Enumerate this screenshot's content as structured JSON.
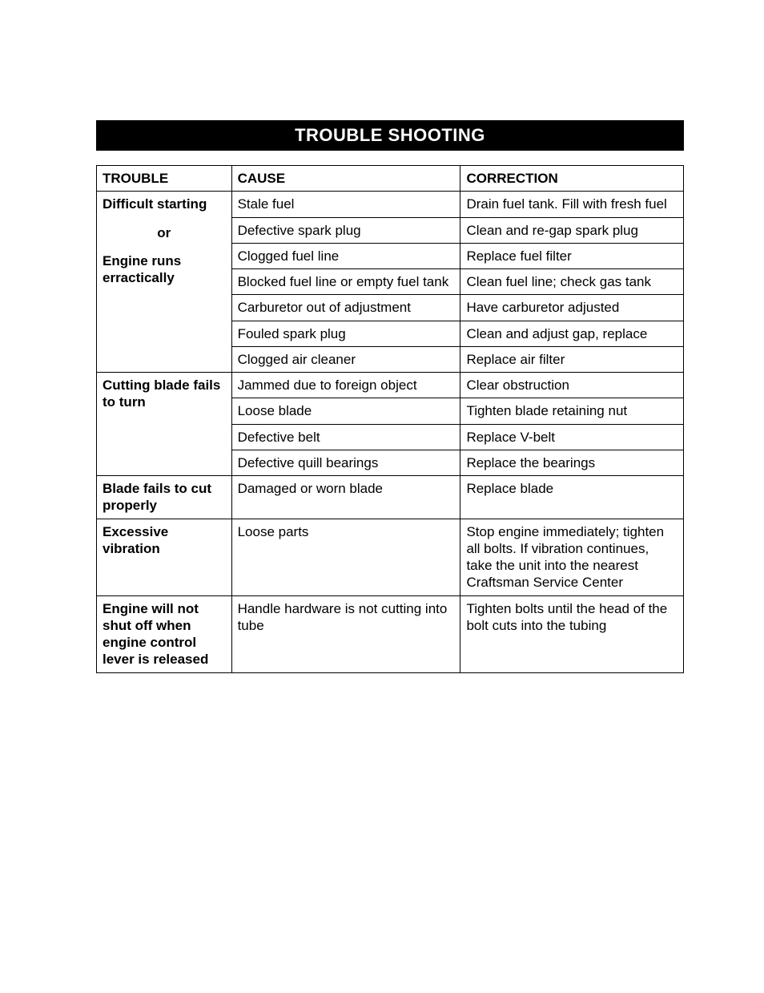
{
  "title": "TROUBLE SHOOTING",
  "headers": {
    "trouble": "TROUBLE",
    "cause": "CAUSE",
    "correction": "CORRECTION"
  },
  "sections": [
    {
      "trouble_lines": [
        "Difficult starting",
        "or",
        "Engine runs erractically"
      ],
      "rows": [
        {
          "cause": "Stale fuel",
          "correction": "Drain fuel tank. Fill with fresh fuel"
        },
        {
          "cause": "Defective spark plug",
          "correction": "Clean and re-gap spark plug"
        },
        {
          "cause": "Clogged fuel line",
          "correction": "Replace fuel filter"
        },
        {
          "cause": "Blocked fuel line or empty fuel tank",
          "correction": "Clean fuel line; check gas tank"
        },
        {
          "cause": "Carburetor out of adjustment",
          "correction": "Have carburetor adjusted"
        },
        {
          "cause": "Fouled spark plug",
          "correction": "Clean and adjust gap, replace"
        },
        {
          "cause": "Clogged air cleaner",
          "correction": "Replace air filter"
        }
      ]
    },
    {
      "trouble_lines": [
        "Cutting blade fails to turn"
      ],
      "rows": [
        {
          "cause": "Jammed due to foreign object",
          "correction": "Clear obstruction"
        },
        {
          "cause": "Loose blade",
          "correction": "Tighten blade retaining nut"
        },
        {
          "cause": "Defective belt",
          "correction": "Replace V-belt"
        },
        {
          "cause": "Defective quill bearings",
          "correction": "Replace the bearings"
        }
      ]
    },
    {
      "trouble_lines": [
        "Blade fails to cut properly"
      ],
      "rows": [
        {
          "cause": "Damaged or worn blade",
          "correction": "Replace blade"
        }
      ]
    },
    {
      "trouble_lines": [
        "Excessive vibration"
      ],
      "rows": [
        {
          "cause": "Loose parts",
          "correction": "Stop engine immediately; tighten all bolts. If vibration continues, take the unit into the nearest Craftsman Service Center"
        }
      ]
    },
    {
      "trouble_lines": [
        "Engine will not shut off when engine control lever is released"
      ],
      "rows": [
        {
          "cause": "Handle hardware is not cutting into tube",
          "correction": "Tighten bolts until the head of the bolt cuts into the tubing"
        }
      ]
    }
  ],
  "style": {
    "title_bg": "#000000",
    "title_fg": "#ffffff",
    "border_color": "#000000",
    "font_family": "Arial, Helvetica, sans-serif",
    "header_fontsize": 17,
    "cell_fontsize": 17,
    "title_fontsize": 22
  }
}
